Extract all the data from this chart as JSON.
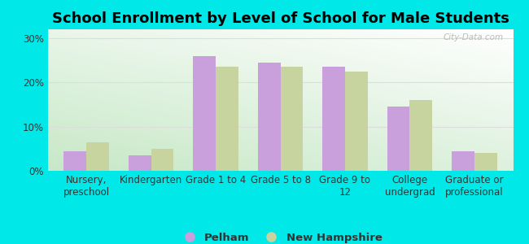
{
  "title": "School Enrollment by Level of School for Male Students",
  "categories": [
    "Nursery,\npreschool",
    "Kindergarten",
    "Grade 1 to 4",
    "Grade 5 to 8",
    "Grade 9 to\n12",
    "College\nundergrad",
    "Graduate or\nprofessional"
  ],
  "pelham_values": [
    4.5,
    3.5,
    26.0,
    24.5,
    23.5,
    14.5,
    4.5
  ],
  "nh_values": [
    6.5,
    5.0,
    23.5,
    23.5,
    22.5,
    16.0,
    4.0
  ],
  "pelham_color": "#c9a0dc",
  "nh_color": "#c8d4a0",
  "background_color": "#00e8e8",
  "plot_bg_top_right": "#ffffff",
  "plot_bg_bottom_left": "#c8e8c8",
  "ylim": [
    0,
    32
  ],
  "yticks": [
    0,
    10,
    20,
    30
  ],
  "ytick_labels": [
    "0%",
    "10%",
    "20%",
    "30%"
  ],
  "bar_width": 0.35,
  "legend_labels": [
    "Pelham",
    "New Hampshire"
  ],
  "watermark": "City-Data.com",
  "title_fontsize": 13,
  "tick_fontsize": 8.5,
  "legend_fontsize": 9.5,
  "grid_color": "#dddddd"
}
